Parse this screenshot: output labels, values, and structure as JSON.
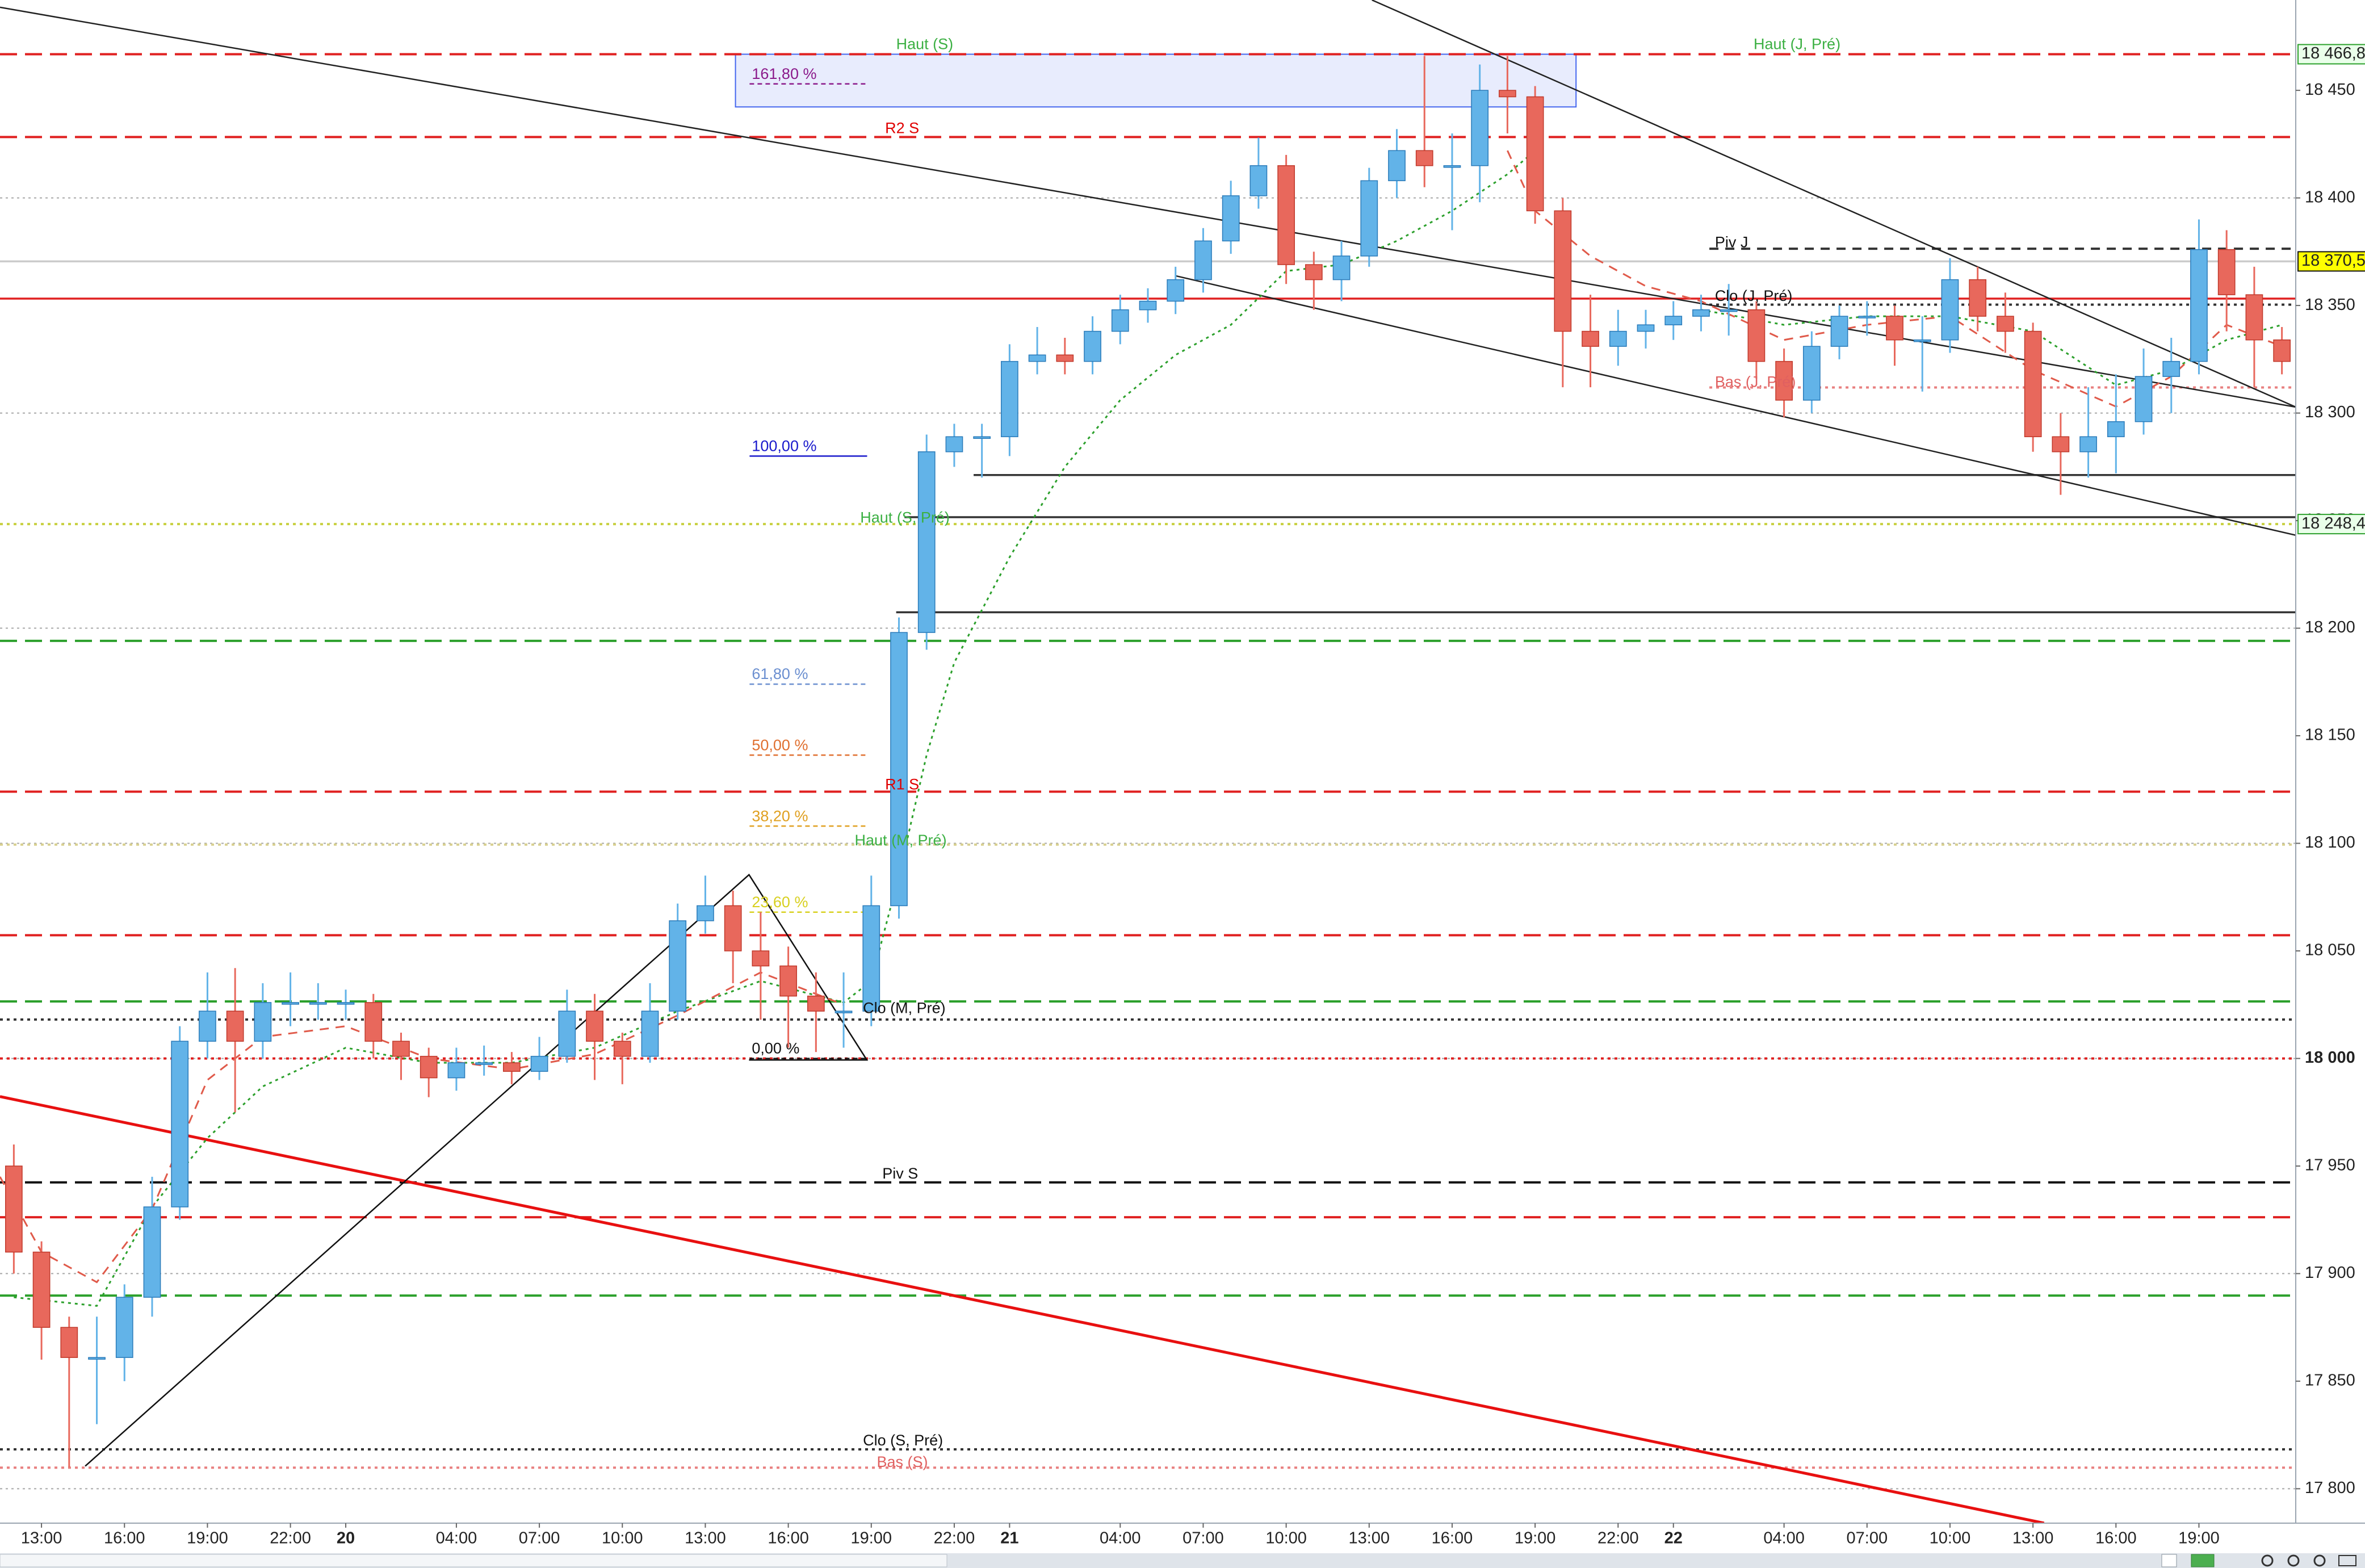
{
  "chart_data": {
    "type": "candlestick",
    "xlim": [
      11.5,
      94.5
    ],
    "ylim": [
      17784,
      18492
    ],
    "xticks": [
      {
        "value": 13,
        "label": "13:00"
      },
      {
        "value": 16,
        "label": "16:00"
      },
      {
        "value": 19,
        "label": "19:00"
      },
      {
        "value": 22,
        "label": "22:00"
      },
      {
        "value": 24,
        "label": "20"
      },
      {
        "value": 28,
        "label": "04:00"
      },
      {
        "value": 31,
        "label": "07:00"
      },
      {
        "value": 34,
        "label": "10:00"
      },
      {
        "value": 37,
        "label": "13:00"
      },
      {
        "value": 40,
        "label": "16:00"
      },
      {
        "value": 43,
        "label": "19:00"
      },
      {
        "value": 46,
        "label": "22:00"
      },
      {
        "value": 48,
        "label": "21"
      },
      {
        "value": 52,
        "label": "04:00"
      },
      {
        "value": 55,
        "label": "07:00"
      },
      {
        "value": 58,
        "label": "10:00"
      },
      {
        "value": 61,
        "label": "13:00"
      },
      {
        "value": 64,
        "label": "16:00"
      },
      {
        "value": 67,
        "label": "19:00"
      },
      {
        "value": 70,
        "label": "22:00"
      },
      {
        "value": 72,
        "label": "22"
      },
      {
        "value": 76,
        "label": "04:00"
      },
      {
        "value": 79,
        "label": "07:00"
      },
      {
        "value": 82,
        "label": "10:00"
      },
      {
        "value": 85,
        "label": "13:00"
      },
      {
        "value": 88,
        "label": "16:00"
      },
      {
        "value": 91,
        "label": "19:00"
      }
    ],
    "yticks": [
      {
        "value": 17800,
        "label": "17 800"
      },
      {
        "value": 17850,
        "label": "17 850"
      },
      {
        "value": 17900,
        "label": "17 900"
      },
      {
        "value": 17950,
        "label": "17 950"
      },
      {
        "value": 18000,
        "label": "18 000"
      },
      {
        "value": 18050,
        "label": "18 050"
      },
      {
        "value": 18100,
        "label": "18 100"
      },
      {
        "value": 18150,
        "label": "18 150"
      },
      {
        "value": 18200,
        "label": "18 200"
      },
      {
        "value": 18250,
        "label": "18 250"
      },
      {
        "value": 18300,
        "label": "18 300"
      },
      {
        "value": 18350,
        "label": "18 350"
      },
      {
        "value": 18400,
        "label": "18 400"
      },
      {
        "value": 18450,
        "label": "18 450"
      }
    ],
    "grid_lines": [
      17800,
      17900,
      18000,
      18100,
      18200,
      18300,
      18400
    ],
    "up_color": "#62b3e8",
    "down_color": "#e8685c",
    "x": [
      12,
      13,
      14,
      15,
      16,
      17,
      18,
      19,
      20,
      21,
      22,
      23,
      24,
      25,
      26,
      27,
      28,
      29,
      30,
      31,
      32,
      33,
      34,
      35,
      36,
      37,
      38,
      39,
      40,
      41,
      42,
      43,
      44,
      45,
      46,
      47,
      48,
      49,
      50,
      51,
      52,
      53,
      54,
      55,
      56,
      57,
      58,
      59,
      60,
      61,
      62,
      63,
      64,
      65,
      66,
      67,
      68,
      69,
      70,
      71,
      72,
      73,
      74,
      75,
      76,
      77,
      78,
      79,
      80,
      81,
      82,
      83,
      84,
      85,
      86,
      87,
      88,
      89,
      90,
      91,
      92,
      93,
      94
    ],
    "open": [
      17950,
      17910,
      17875,
      17861,
      17861,
      17889,
      17931,
      18008,
      18022,
      18008,
      18026,
      18026,
      18026,
      18026,
      18008,
      18001,
      17991,
      17998,
      17998,
      17994,
      18001,
      18022,
      18008,
      18001,
      18022,
      18064,
      18071,
      18050,
      18043,
      18029,
      18022,
      18022,
      18071,
      18198,
      18282,
      18289,
      18289,
      18324,
      18327,
      18324,
      18338,
      18348,
      18352,
      18362,
      18380,
      18401,
      18415,
      18369,
      18362,
      18373,
      18408,
      18422,
      18415,
      18415,
      18450,
      18447,
      18394,
      18338,
      18331,
      18338,
      18341,
      18345,
      18348,
      18348,
      18324,
      18306,
      18331,
      18345,
      18345,
      18334,
      18334,
      18362,
      18345,
      18338,
      18289,
      18282,
      18289,
      18296,
      18317,
      18324,
      18376,
      18355,
      18334
    ],
    "high": [
      17960,
      17915,
      17880,
      17880,
      17895,
      17945,
      18015,
      18040,
      18042,
      18035,
      18040,
      18035,
      18032,
      18030,
      18012,
      18005,
      18005,
      18006,
      18003,
      18010,
      18032,
      18030,
      18012,
      18035,
      18072,
      18085,
      18078,
      18068,
      18052,
      18040,
      18040,
      18085,
      18205,
      18290,
      18295,
      18295,
      18332,
      18340,
      18335,
      18345,
      18355,
      18358,
      18368,
      18386,
      18408,
      18428,
      18420,
      18375,
      18380,
      18414,
      18432,
      18466,
      18430,
      18462,
      18466,
      18452,
      18400,
      18355,
      18348,
      18348,
      18352,
      18355,
      18360,
      18352,
      18330,
      18338,
      18350,
      18352,
      18350,
      18345,
      18372,
      18368,
      18356,
      18342,
      18300,
      18312,
      18318,
      18330,
      18335,
      18390,
      18385,
      18368,
      18340
    ],
    "low": [
      17900,
      17860,
      17810,
      17830,
      17850,
      17880,
      17925,
      18000,
      17975,
      18000,
      18015,
      18018,
      18018,
      18000,
      17990,
      17982,
      17985,
      17992,
      17988,
      17990,
      17998,
      17990,
      17988,
      17998,
      18018,
      18058,
      18035,
      18018,
      18005,
      18003,
      18005,
      18015,
      18065,
      18190,
      18275,
      18270,
      18280,
      18318,
      18318,
      18318,
      18332,
      18342,
      18346,
      18356,
      18374,
      18395,
      18360,
      18348,
      18352,
      18368,
      18400,
      18405,
      18385,
      18398,
      18430,
      18388,
      18312,
      18312,
      18322,
      18330,
      18334,
      18338,
      18336,
      18316,
      18298,
      18300,
      18325,
      18336,
      18322,
      18310,
      18328,
      18338,
      18328,
      18282,
      18262,
      18270,
      18272,
      18290,
      18300,
      18318,
      18338,
      18312,
      18318
    ],
    "close": [
      17910,
      17875,
      17861,
      17861,
      17889,
      17931,
      18008,
      18022,
      18008,
      18026,
      18026,
      18026,
      18026,
      18008,
      18001,
      17991,
      17998,
      17998,
      17994,
      18001,
      18022,
      18008,
      18001,
      18022,
      18064,
      18071,
      18050,
      18043,
      18029,
      18022,
      18022,
      18071,
      18198,
      18282,
      18289,
      18289,
      18324,
      18327,
      18324,
      18338,
      18348,
      18352,
      18362,
      18380,
      18401,
      18415,
      18369,
      18362,
      18373,
      18408,
      18422,
      18415,
      18415,
      18450,
      18447,
      18394,
      18338,
      18331,
      18338,
      18341,
      18345,
      18348,
      18348,
      18324,
      18306,
      18331,
      18345,
      18345,
      18334,
      18334,
      18362,
      18345,
      18338,
      18289,
      18282,
      18289,
      18296,
      18317,
      18324,
      18376,
      18355,
      18334,
      18324
    ],
    "overlays": [
      {
        "color": "#2ca02c",
        "dash": "dot",
        "x": [
          12,
          15,
          17,
          19,
          21,
          24,
          27,
          30,
          33,
          36,
          39,
          42,
          43,
          44,
          45,
          46,
          48,
          50,
          52,
          54,
          56,
          58,
          60,
          62,
          64,
          66,
          67,
          70,
          73,
          76,
          79,
          82,
          85,
          88,
          90,
          92,
          94
        ],
        "values": [
          17889,
          17885,
          17931,
          17963,
          17987,
          18005,
          17998,
          17998,
          18005,
          18022,
          18036,
          18026,
          18036,
          18085,
          18141,
          18184,
          18233,
          18275,
          18306,
          18327,
          18341,
          18366,
          18369,
          18380,
          18394,
          18411,
          18422,
          null,
          18348,
          18341,
          18345,
          18345,
          18338,
          18313,
          18320,
          18334,
          18341
        ]
      },
      {
        "color": "#e05a4a",
        "dash": "dash",
        "x": [
          11.5,
          13,
          15,
          17,
          19,
          21,
          24,
          27,
          30,
          33,
          36,
          39,
          42,
          50,
          66,
          67,
          69,
          71,
          73,
          76,
          79,
          82,
          85,
          88,
          90,
          92,
          94
        ],
        "values": [
          17945,
          17910,
          17896,
          17930,
          17990,
          18010,
          18015,
          18000,
          17995,
          18002,
          18020,
          18040,
          18025,
          null,
          18422,
          18394,
          18373,
          18359,
          18352,
          18334,
          18341,
          18345,
          18320,
          18303,
          18317,
          18341,
          18331
        ]
      }
    ],
    "levels": [
      {
        "value": 18466.8,
        "color": "#e02020",
        "dash": "long-dash"
      },
      {
        "value": 18428.3,
        "color": "#e02020",
        "dash": "long-dash"
      },
      {
        "value": 18376.4,
        "color": "#333333",
        "dash": "dash",
        "from": 73.3
      },
      {
        "value": 18370.5,
        "color": "#cccccc",
        "dash": "solid"
      },
      {
        "value": 18353.2,
        "color": "#e02020",
        "dash": "solid"
      },
      {
        "value": 18350.4,
        "color": "#333333",
        "dash": "dot",
        "from": 73.3
      },
      {
        "value": 18311.9,
        "color": "#e88080",
        "dash": "dot",
        "from": 73.3
      },
      {
        "value": 18271.2,
        "color": "#333333",
        "dash": "solid",
        "from": 46.7
      },
      {
        "value": 18251.6,
        "color": "#333333",
        "dash": "solid",
        "from": 44.2
      },
      {
        "value": 18248.4,
        "color": "#c8d040",
        "dash": "dot"
      },
      {
        "value": 18207.4,
        "color": "#333333",
        "dash": "solid",
        "from": 43.9
      },
      {
        "value": 18194.1,
        "color": "#2ca02c",
        "dash": "long-dash"
      },
      {
        "value": 18124,
        "color": "#e02020",
        "dash": "long-dash"
      },
      {
        "value": 18099.4,
        "color": "#d8d090",
        "dash": "dot"
      },
      {
        "value": 18057.3,
        "color": "#e02020",
        "dash": "long-dash"
      },
      {
        "value": 18026.5,
        "color": "#2ca02c",
        "dash": "long-dash"
      },
      {
        "value": 18018.1,
        "color": "#333333",
        "dash": "dot"
      },
      {
        "value": 18000,
        "color": "#e02020",
        "dash": "dot"
      },
      {
        "value": 17942.4,
        "color": "#111111",
        "dash": "long-dash"
      },
      {
        "value": 17926.2,
        "color": "#e02020",
        "dash": "long-dash"
      },
      {
        "value": 17889.8,
        "color": "#2ca02c",
        "dash": "long-dash"
      },
      {
        "value": 17818.3,
        "color": "#333333",
        "dash": "dot"
      },
      {
        "value": 17809.8,
        "color": "#e88080",
        "dash": "dot"
      }
    ],
    "annotations": [
      {
        "text": "Haut (S)",
        "x": 43.9,
        "y": 18471,
        "color": "#3cb043"
      },
      {
        "text": "Haut (J, Pré)",
        "x": 74.9,
        "y": 18471,
        "color": "#3cb043"
      },
      {
        "text": "R2 S",
        "x": 43.5,
        "y": 18432,
        "color": "#e00000"
      },
      {
        "text": "Piv J",
        "x": 73.5,
        "y": 18379,
        "color": "#111111"
      },
      {
        "text": "Clo (J, Pré)",
        "x": 73.5,
        "y": 18354,
        "color": "#111111"
      },
      {
        "text": "Bas (J, Pré)",
        "x": 73.5,
        "y": 18314,
        "color": "#e06060"
      },
      {
        "text": "Haut (S, Pré)",
        "x": 42.6,
        "y": 18251,
        "color": "#3cb043"
      },
      {
        "text": "R1 S",
        "x": 43.5,
        "y": 18127,
        "color": "#e00000"
      },
      {
        "text": "Haut (M, Pré)",
        "x": 42.4,
        "y": 18101,
        "color": "#3cb043"
      },
      {
        "text": "Clo (M, Pré)",
        "x": 42.7,
        "y": 18023,
        "color": "#111111"
      },
      {
        "text": "Piv S",
        "x": 43.4,
        "y": 17946,
        "color": "#111111"
      },
      {
        "text": "Clo (S, Pré)",
        "x": 42.7,
        "y": 17822,
        "color": "#111111"
      },
      {
        "text": "Bas (S)",
        "x": 43.2,
        "y": 17812,
        "color": "#e06060"
      }
    ],
    "fibonacci": {
      "x": [
        38.6,
        42.85
      ],
      "levels": [
        {
          "label": "161,80 %",
          "value": 18453,
          "color": "#8b1a8b"
        },
        {
          "label": "100,00 %",
          "value": 18280,
          "color": "#1a1acc"
        },
        {
          "label": "61,80 %",
          "value": 18174,
          "color": "#6b8fd0"
        },
        {
          "label": "50,00 %",
          "value": 18141,
          "color": "#e07030"
        },
        {
          "label": "38,20 %",
          "value": 18108,
          "color": "#e0a020"
        },
        {
          "label": "23,60 %",
          "value": 18068,
          "color": "#d8d020"
        },
        {
          "label": "0,00 %",
          "value": 18000,
          "color": "#111111"
        }
      ]
    },
    "trendlines": [
      {
        "x": [
          11.5,
          94.5
        ],
        "y": [
          18488.6,
          18302.8
        ],
        "color": "#222222",
        "style": "thin"
      },
      {
        "x": [
          61.1,
          94.5
        ],
        "y": [
          18492,
          18302.8
        ],
        "color": "#222222",
        "style": "thin"
      },
      {
        "x": [
          54.0,
          94.5
        ],
        "y": [
          18363.8,
          18243.2
        ],
        "color": "#222222",
        "style": "thin"
      },
      {
        "x": [
          11.5,
          85.4
        ],
        "y": [
          17982.3,
          17784
        ],
        "color": "#e81010",
        "style": "heavy"
      },
      {
        "x": [
          14.58,
          38.58,
          42.84,
          38.58
        ],
        "y": [
          17810.5,
          18085.4,
          17999.3,
          17999.3
        ],
        "color": "#111111",
        "style": "thin"
      }
    ],
    "zones": [
      {
        "x": [
          38.09,
          68.48
        ],
        "y": [
          18442.3,
          18466.8
        ],
        "color": "#4466ee"
      }
    ],
    "price_tags": [
      {
        "label": "18 466,8",
        "value": 18466.8,
        "color": "#2ca02c",
        "fill": "#eaffea"
      },
      {
        "label": "18 370,5",
        "value": 18370.5,
        "color": "#111111",
        "fill": "#ffff00"
      },
      {
        "label": "18 248,4",
        "value": 18248.4,
        "color": "#2ca02c",
        "fill": "#eaffea"
      }
    ]
  }
}
